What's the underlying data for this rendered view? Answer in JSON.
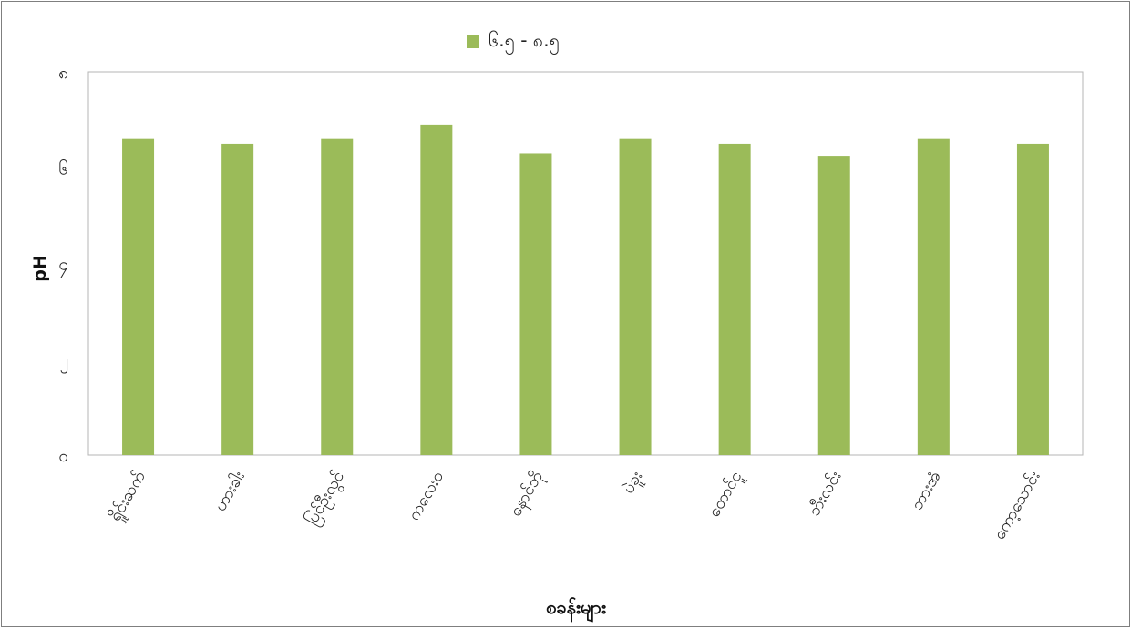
{
  "chart_data": {
    "type": "bar",
    "title": "",
    "xlabel": "စခန်းများ",
    "ylabel": "pH",
    "ylim": [
      0,
      8
    ],
    "yticks": [
      {
        "value": 0,
        "label": "၀"
      },
      {
        "value": 2,
        "label": "၂"
      },
      {
        "value": 4,
        "label": "၄"
      },
      {
        "value": 6,
        "label": "၆"
      },
      {
        "value": 8,
        "label": "၈"
      }
    ],
    "categories": [
      "ရှိုင်းဆက်",
      "ဟားခါး",
      "ပြင်ဦးလွင်",
      "ကလေးဝ",
      "နောင်ဘို",
      "ပဲခူး",
      "တောင်ငူ",
      "ဘီးလင်း",
      "ဘားအံ",
      "ကော့သောင်း"
    ],
    "series": [
      {
        "name": "၆.၅ - ၈.၅",
        "color": "#9bbb59",
        "values": [
          6.6,
          6.5,
          6.6,
          6.9,
          6.3,
          6.6,
          6.5,
          6.25,
          6.6,
          6.5
        ]
      }
    ],
    "grid": false,
    "legend_position": "top"
  }
}
